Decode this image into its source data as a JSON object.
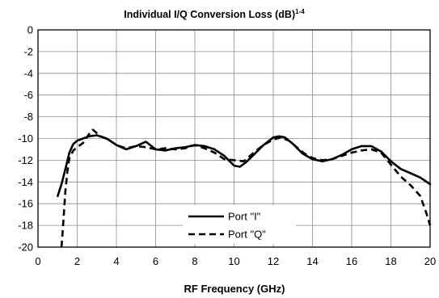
{
  "chart_data": {
    "type": "line",
    "title": "Individual I/Q Conversion Loss (dB)",
    "title_superscript": "1-4",
    "xlabel": "RF Frequency (GHz)",
    "ylabel": "",
    "xlim": [
      0,
      20
    ],
    "ylim": [
      -20,
      0
    ],
    "xticks": [
      0,
      2,
      4,
      6,
      8,
      10,
      12,
      14,
      16,
      18,
      20
    ],
    "yticks": [
      0,
      -2,
      -4,
      -6,
      -8,
      -10,
      -12,
      -14,
      -16,
      -18,
      -20
    ],
    "grid": true,
    "legend_position": "bottom-center",
    "series": [
      {
        "name": "Port \"I\"",
        "style": "solid",
        "color": "#000000",
        "x": [
          1.0,
          1.2,
          1.4,
          1.6,
          1.8,
          2.0,
          2.3,
          2.6,
          3.0,
          3.5,
          4.0,
          4.5,
          5.0,
          5.5,
          6.0,
          6.5,
          7.0,
          7.5,
          8.0,
          8.5,
          9.0,
          9.5,
          10.0,
          10.3,
          10.6,
          11.0,
          11.5,
          12.0,
          12.3,
          12.6,
          13.0,
          13.5,
          14.0,
          14.5,
          15.0,
          15.5,
          16.0,
          16.5,
          17.0,
          17.5,
          18.0,
          18.5,
          19.0,
          19.5,
          20.0
        ],
        "values": [
          -15.3,
          -14.2,
          -12.8,
          -11.3,
          -10.5,
          -10.2,
          -10.0,
          -9.8,
          -9.7,
          -10.0,
          -10.6,
          -11.0,
          -10.7,
          -10.3,
          -11.0,
          -11.1,
          -10.9,
          -10.8,
          -10.6,
          -10.7,
          -11.0,
          -11.6,
          -12.5,
          -12.6,
          -12.2,
          -11.5,
          -10.6,
          -9.9,
          -9.8,
          -9.9,
          -10.5,
          -11.4,
          -11.9,
          -12.1,
          -11.9,
          -11.5,
          -11.0,
          -10.7,
          -10.7,
          -11.2,
          -12.1,
          -12.8,
          -13.2,
          -13.6,
          -14.2
        ]
      },
      {
        "name": "Port \"Q\"",
        "style": "dashed",
        "color": "#000000",
        "x": [
          1.2,
          1.3,
          1.4,
          1.5,
          1.6,
          1.8,
          2.0,
          2.3,
          2.6,
          2.8,
          3.2,
          3.6,
          4.0,
          4.5,
          5.0,
          5.5,
          6.0,
          6.5,
          7.0,
          7.5,
          8.0,
          8.5,
          9.0,
          9.5,
          10.0,
          10.5,
          11.0,
          11.5,
          12.0,
          12.4,
          12.8,
          13.2,
          13.6,
          14.0,
          14.5,
          15.0,
          15.5,
          16.0,
          16.5,
          17.0,
          17.5,
          18.0,
          18.5,
          19.0,
          19.5,
          19.8,
          20.0
        ],
        "values": [
          -20.0,
          -17.5,
          -14.8,
          -13.0,
          -11.8,
          -11.1,
          -10.8,
          -10.4,
          -9.6,
          -9.2,
          -9.8,
          -10.1,
          -10.6,
          -10.9,
          -10.7,
          -10.8,
          -11.0,
          -10.9,
          -11.0,
          -10.9,
          -10.6,
          -10.9,
          -11.3,
          -11.9,
          -12.0,
          -12.1,
          -11.3,
          -10.6,
          -10.1,
          -9.9,
          -10.2,
          -10.8,
          -11.4,
          -11.8,
          -12.0,
          -11.9,
          -11.6,
          -11.3,
          -11.1,
          -11.0,
          -11.3,
          -12.4,
          -13.5,
          -14.3,
          -15.3,
          -16.8,
          -18.0
        ]
      }
    ]
  }
}
